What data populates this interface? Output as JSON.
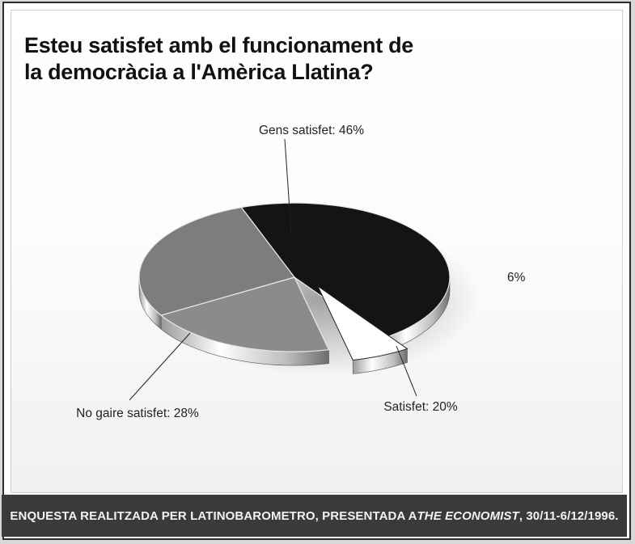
{
  "chart_data": {
    "type": "pie",
    "title_lines": [
      "Esteu satisfet amb el funcionament de",
      "la democràcia a l'Amèrica Llatina?"
    ],
    "slices": [
      {
        "label": "Gens satisfet: 46%",
        "value": 46,
        "color": "#141414"
      },
      {
        "label": "6%",
        "value": 6,
        "color": "#ffffff",
        "exploded": true
      },
      {
        "label": "Satisfet: 20%",
        "value": 20,
        "color": "#8b8b8d"
      },
      {
        "label": "No gaire satisfet: 28%",
        "value": 28,
        "color": "#7d7d80"
      }
    ],
    "style": "3d-tilted"
  },
  "footer": {
    "prefix": "ENQUESTA REALITZADA PER LATINOBAROMETRO, PRESENTADA A ",
    "publication": "THE ECONOMIST",
    "suffix": ", 30/11-6/12/1996."
  }
}
